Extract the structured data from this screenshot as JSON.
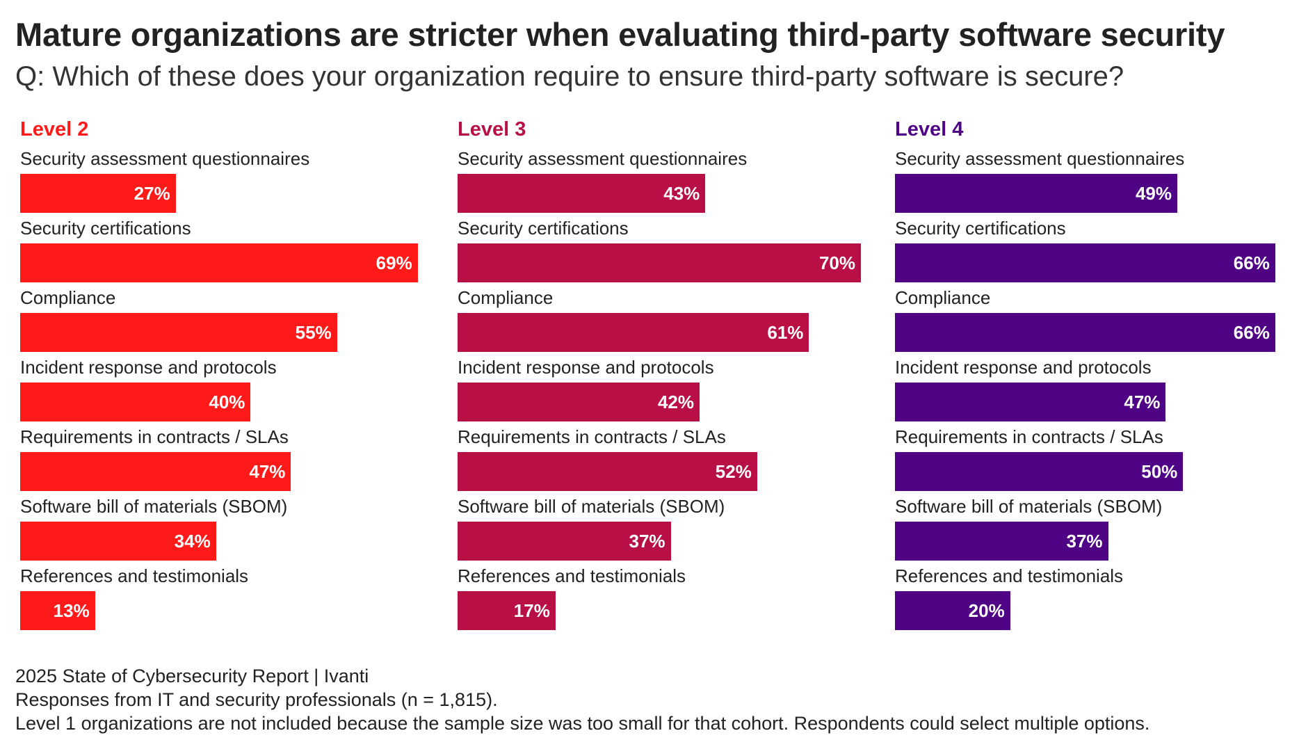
{
  "chart_data": {
    "type": "bar",
    "orientation": "horizontal",
    "title": "Mature organizations are stricter when evaluating third-party software security",
    "subtitle": "Q: Which of these does your organization require to ensure third-party software is secure?",
    "categories": [
      "Security assessment questionnaires",
      "Security certifications",
      "Compliance",
      "Incident response and protocols",
      "Requirements in contracts / SLAs",
      "Software bill of materials (SBOM)",
      "References and testimonials"
    ],
    "xlim": [
      0,
      70
    ],
    "value_suffix": "%",
    "series": [
      {
        "name": "Level 2",
        "color": "#ff1a1a",
        "values": [
          27,
          69,
          55,
          40,
          47,
          34,
          13
        ]
      },
      {
        "name": "Level 3",
        "color": "#b80f45",
        "values": [
          43,
          70,
          61,
          42,
          52,
          37,
          17
        ]
      },
      {
        "name": "Level 4",
        "color": "#4e0485",
        "values": [
          49,
          66,
          66,
          47,
          50,
          37,
          20
        ]
      }
    ]
  },
  "footer": {
    "source": "2025 State of Cybersecurity Report | Ivanti",
    "responses": "Responses from IT and security professionals (n = 1,815).",
    "note": "Level 1 organizations are not included because the sample size was too small for that cohort. Respondents could select multiple options."
  }
}
